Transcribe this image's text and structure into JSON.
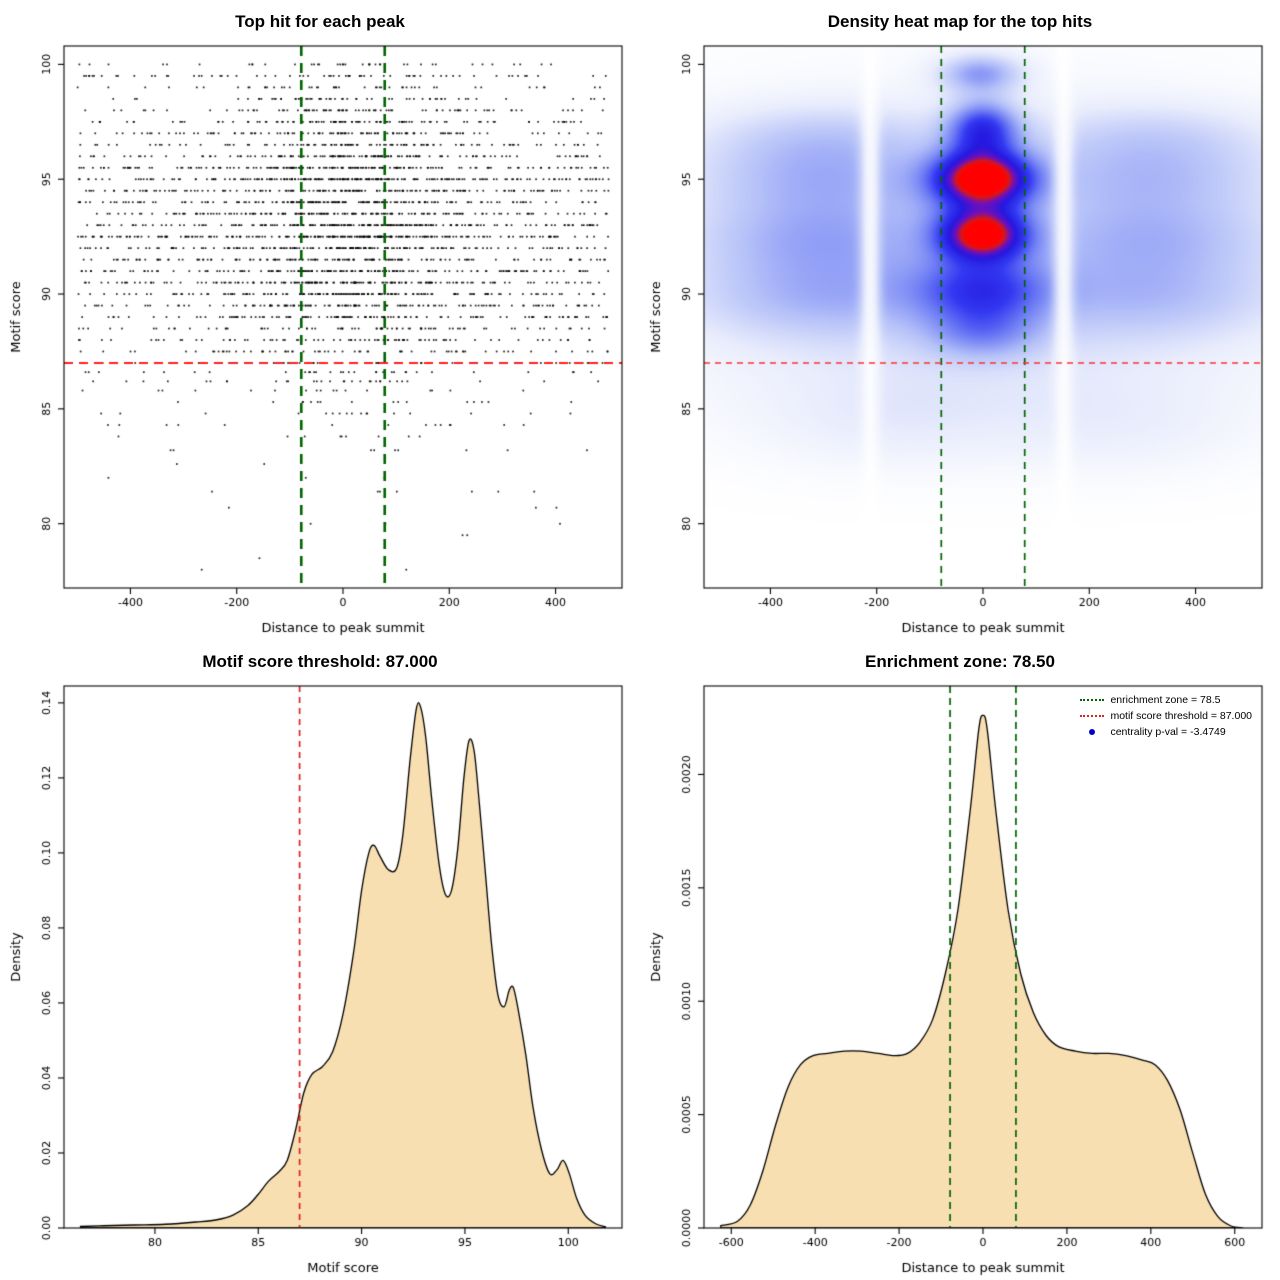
{
  "page": {
    "background": "#ffffff"
  },
  "chart_data": [
    {
      "type": "scatter",
      "title": "Top hit for each peak",
      "xlabel": "Distance to peak summit",
      "ylabel": "Motif score",
      "xlim": [
        -525,
        525
      ],
      "ylim": [
        77.2,
        100.8
      ],
      "xticks": [
        -400,
        -200,
        0,
        200,
        400
      ],
      "xtick_labels": [
        "-400",
        "-200",
        "0",
        "200",
        "400"
      ],
      "yticks": [
        80,
        85,
        90,
        95,
        100
      ],
      "ytick_labels": [
        "80",
        "85",
        "90",
        "95",
        "100"
      ],
      "point_color": "#000000",
      "threshold_line": {
        "y": 87,
        "color": "#ff2020",
        "dash": [
          9,
          6
        ],
        "width": 2
      },
      "zone_lines": {
        "x": [
          -78.5,
          78.5
        ],
        "color": "#006400",
        "dash": [
          10,
          7
        ],
        "width": 2.6
      },
      "points_spec": {
        "n": 3600,
        "seed": 11,
        "x_uniform_frac": 0.55,
        "x_range": [
          -500,
          500
        ],
        "x_mu": 15,
        "x_sd": 120,
        "y_bands": [
          [
            78,
            0.06
          ],
          [
            78.5,
            0.05
          ],
          [
            79.5,
            0.08
          ],
          [
            80,
            0.12
          ],
          [
            80.7,
            0.1
          ],
          [
            81.4,
            0.15
          ],
          [
            82,
            0.25
          ],
          [
            82.6,
            0.2
          ],
          [
            83.2,
            0.35
          ],
          [
            83.8,
            0.45
          ],
          [
            84.3,
            0.55
          ],
          [
            84.8,
            0.7
          ],
          [
            85.3,
            0.9
          ],
          [
            85.8,
            1.1
          ],
          [
            86.2,
            1.3
          ],
          [
            86.6,
            1.6
          ],
          [
            87,
            2.2
          ],
          [
            87.5,
            2.8
          ],
          [
            88,
            3.6
          ],
          [
            88.5,
            4.4
          ],
          [
            89,
            5.2
          ],
          [
            89.5,
            6.5
          ],
          [
            90,
            7.8
          ],
          [
            90.5,
            8.8
          ],
          [
            91,
            8.2
          ],
          [
            91.5,
            8.2
          ],
          [
            92,
            9
          ],
          [
            92.5,
            11.5
          ],
          [
            93,
            10
          ],
          [
            93.5,
            8.4
          ],
          [
            94,
            8.2
          ],
          [
            94.5,
            9
          ],
          [
            95,
            11
          ],
          [
            95.5,
            9
          ],
          [
            96,
            7.4
          ],
          [
            96.5,
            6
          ],
          [
            97,
            6
          ],
          [
            97.5,
            5
          ],
          [
            98,
            4
          ],
          [
            98.5,
            3
          ],
          [
            99,
            2.6
          ],
          [
            99.5,
            3.2
          ],
          [
            100,
            2.6
          ]
        ]
      }
    },
    {
      "type": "heatmap",
      "title": "Density heat map for the top hits",
      "xlabel": "Distance to peak summit",
      "ylabel": "Motif score",
      "xlim": [
        -525,
        525
      ],
      "ylim": [
        77.2,
        100.8
      ],
      "xticks": [
        -400,
        -200,
        0,
        200,
        400
      ],
      "xtick_labels": [
        "-400",
        "-200",
        "0",
        "200",
        "400"
      ],
      "yticks": [
        80,
        85,
        90,
        95,
        100
      ],
      "ytick_labels": [
        "80",
        "85",
        "90",
        "95",
        "100"
      ],
      "threshold_line": {
        "y": 87,
        "color": "#ff3030",
        "dash": [
          6,
          5
        ],
        "width": 1.4
      },
      "zone_lines": {
        "x": [
          -78.5,
          78.5
        ],
        "color": "#006400",
        "dash": [
          7,
          6
        ],
        "width": 1.7
      },
      "max_v": 1.5,
      "blobs": [
        [
          0,
          95,
          65,
          0.85,
          1.45
        ],
        [
          0,
          92.6,
          58,
          0.8,
          1.32
        ],
        [
          0,
          97.2,
          46,
          0.85,
          0.8
        ],
        [
          -5,
          99.6,
          55,
          0.6,
          0.5
        ],
        [
          0,
          90.2,
          85,
          0.95,
          0.6
        ],
        [
          0,
          88.3,
          75,
          0.85,
          0.38
        ],
        [
          -310,
          95,
          175,
          1.35,
          0.34
        ],
        [
          325,
          95,
          175,
          1.35,
          0.3
        ],
        [
          -300,
          90,
          195,
          1.5,
          0.37
        ],
        [
          315,
          90,
          195,
          1.5,
          0.33
        ],
        [
          -315,
          92.5,
          175,
          1.15,
          0.27
        ],
        [
          330,
          92.5,
          175,
          1.15,
          0.24
        ],
        [
          -305,
          97,
          165,
          1.05,
          0.2
        ],
        [
          325,
          97,
          165,
          1.05,
          0.18
        ],
        [
          0,
          93.2,
          430,
          4.3,
          0.16
        ],
        [
          0,
          86.3,
          390,
          2.3,
          0.12
        ],
        [
          -175,
          84.5,
          165,
          1.5,
          0.1
        ],
        [
          265,
          84.2,
          165,
          1.5,
          0.09
        ]
      ],
      "gaps": [
        [
          -212,
          13
        ],
        [
          152,
          13
        ]
      ],
      "colormap": [
        [
          0,
          "#ffffff"
        ],
        [
          0.12,
          "#e8ecfc"
        ],
        [
          0.28,
          "#b4c0f8"
        ],
        [
          0.45,
          "#6f7ef4"
        ],
        [
          0.6,
          "#3339f1"
        ],
        [
          0.74,
          "#2418e0"
        ],
        [
          0.85,
          "#6a10c0"
        ],
        [
          0.94,
          "#d81818"
        ],
        [
          1,
          "#ff0000"
        ]
      ]
    },
    {
      "type": "density",
      "title": "Motif score threshold: 87.000",
      "xlabel": "Motif score",
      "ylabel": "Density",
      "xlim": [
        75.6,
        102.6
      ],
      "ylim": [
        0,
        0.1445
      ],
      "xticks": [
        80,
        85,
        90,
        95,
        100
      ],
      "xtick_labels": [
        "80",
        "85",
        "90",
        "95",
        "100"
      ],
      "yticks": [
        0,
        0.02,
        0.04,
        0.06,
        0.08,
        0.1,
        0.12,
        0.14
      ],
      "ytick_labels": [
        "0.00",
        "0.02",
        "0.04",
        "0.06",
        "0.08",
        "0.10",
        "0.12",
        "0.14"
      ],
      "fill": "#f8dfb1",
      "stroke": "#000000",
      "vlines": [
        {
          "x": 87,
          "color": "#dd2222",
          "dash": [
            6,
            5
          ],
          "width": 1.7
        }
      ],
      "curve": [
        [
          76.4,
          0.0004
        ],
        [
          77.5,
          0.0006
        ],
        [
          79,
          0.0008
        ],
        [
          80.5,
          0.001
        ],
        [
          82,
          0.0016
        ],
        [
          83,
          0.0022
        ],
        [
          83.8,
          0.0035
        ],
        [
          84.5,
          0.006
        ],
        [
          85,
          0.009
        ],
        [
          85.5,
          0.0125
        ],
        [
          86,
          0.015
        ],
        [
          86.4,
          0.018
        ],
        [
          86.8,
          0.026
        ],
        [
          87.2,
          0.036
        ],
        [
          87.6,
          0.041
        ],
        [
          88.1,
          0.043
        ],
        [
          88.6,
          0.047
        ],
        [
          89.1,
          0.057
        ],
        [
          89.6,
          0.073
        ],
        [
          90,
          0.09
        ],
        [
          90.35,
          0.1
        ],
        [
          90.6,
          0.102
        ],
        [
          90.9,
          0.099
        ],
        [
          91.3,
          0.0955
        ],
        [
          91.7,
          0.096
        ],
        [
          92,
          0.105
        ],
        [
          92.35,
          0.125
        ],
        [
          92.65,
          0.1385
        ],
        [
          92.85,
          0.139
        ],
        [
          93.1,
          0.131
        ],
        [
          93.4,
          0.114
        ],
        [
          93.75,
          0.097
        ],
        [
          94.05,
          0.089
        ],
        [
          94.35,
          0.09
        ],
        [
          94.65,
          0.101
        ],
        [
          94.95,
          0.12
        ],
        [
          95.2,
          0.13
        ],
        [
          95.45,
          0.127
        ],
        [
          95.7,
          0.113
        ],
        [
          96,
          0.094
        ],
        [
          96.3,
          0.075
        ],
        [
          96.6,
          0.062
        ],
        [
          96.9,
          0.059
        ],
        [
          97.15,
          0.0635
        ],
        [
          97.35,
          0.064
        ],
        [
          97.6,
          0.0575
        ],
        [
          97.95,
          0.046
        ],
        [
          98.3,
          0.032
        ],
        [
          98.7,
          0.021
        ],
        [
          99.1,
          0.0145
        ],
        [
          99.45,
          0.0155
        ],
        [
          99.75,
          0.018
        ],
        [
          100.05,
          0.0145
        ],
        [
          100.4,
          0.008
        ],
        [
          100.8,
          0.0035
        ],
        [
          101.3,
          0.0012
        ],
        [
          101.8,
          0.0003
        ]
      ]
    },
    {
      "type": "density",
      "title": "Enrichment zone: 78.50",
      "xlabel": "Distance to peak summit",
      "ylabel": "Density",
      "xlim": [
        -665,
        665
      ],
      "ylim": [
        0,
        0.00239
      ],
      "xticks": [
        -600,
        -400,
        -200,
        0,
        200,
        400,
        600
      ],
      "xtick_labels": [
        "-600",
        "-400",
        "-200",
        "0",
        "200",
        "400",
        "600"
      ],
      "yticks": [
        0,
        0.0005,
        0.001,
        0.0015,
        0.002
      ],
      "ytick_labels": [
        "0.0000",
        "0.0005",
        "0.0010",
        "0.0015",
        "0.0020"
      ],
      "fill": "#f8dfb1",
      "stroke": "#000000",
      "vlines": [
        {
          "x": -78.5,
          "color": "#006400",
          "dash": [
            7,
            5
          ],
          "width": 1.7
        },
        {
          "x": 78.5,
          "color": "#006400",
          "dash": [
            7,
            5
          ],
          "width": 1.7
        }
      ],
      "curve": [
        [
          -625,
          1e-05
        ],
        [
          -585,
          3e-05
        ],
        [
          -555,
          0.0001
        ],
        [
          -525,
          0.00025
        ],
        [
          -495,
          0.00045
        ],
        [
          -465,
          0.00062
        ],
        [
          -435,
          0.00072
        ],
        [
          -405,
          0.00076
        ],
        [
          -370,
          0.00077
        ],
        [
          -330,
          0.00078
        ],
        [
          -290,
          0.00078
        ],
        [
          -250,
          0.00077
        ],
        [
          -210,
          0.00076
        ],
        [
          -180,
          0.00077
        ],
        [
          -150,
          0.00082
        ],
        [
          -120,
          0.00092
        ],
        [
          -90,
          0.00112
        ],
        [
          -60,
          0.0014
        ],
        [
          -30,
          0.00185
        ],
        [
          -10,
          0.0022
        ],
        [
          0,
          0.00226
        ],
        [
          10,
          0.0022
        ],
        [
          30,
          0.00185
        ],
        [
          60,
          0.0014
        ],
        [
          90,
          0.00112
        ],
        [
          120,
          0.00095
        ],
        [
          150,
          0.00085
        ],
        [
          180,
          0.0008
        ],
        [
          220,
          0.00078
        ],
        [
          260,
          0.00077
        ],
        [
          300,
          0.00077
        ],
        [
          340,
          0.00076
        ],
        [
          380,
          0.00074
        ],
        [
          410,
          0.00072
        ],
        [
          440,
          0.00065
        ],
        [
          470,
          0.00052
        ],
        [
          500,
          0.00033
        ],
        [
          530,
          0.00015
        ],
        [
          560,
          5e-05
        ],
        [
          590,
          1e-05
        ],
        [
          620,
          0
        ]
      ],
      "legend": [
        {
          "label": "enrichment zone = 78.5",
          "color": "#006400",
          "type": "dotted-line"
        },
        {
          "label": "motif score threshold = 87.000",
          "color": "#dd2222",
          "type": "dotted-line"
        },
        {
          "label": "centrality p-val = -3.4749",
          "color": "#0000cd",
          "type": "dot"
        }
      ]
    }
  ]
}
